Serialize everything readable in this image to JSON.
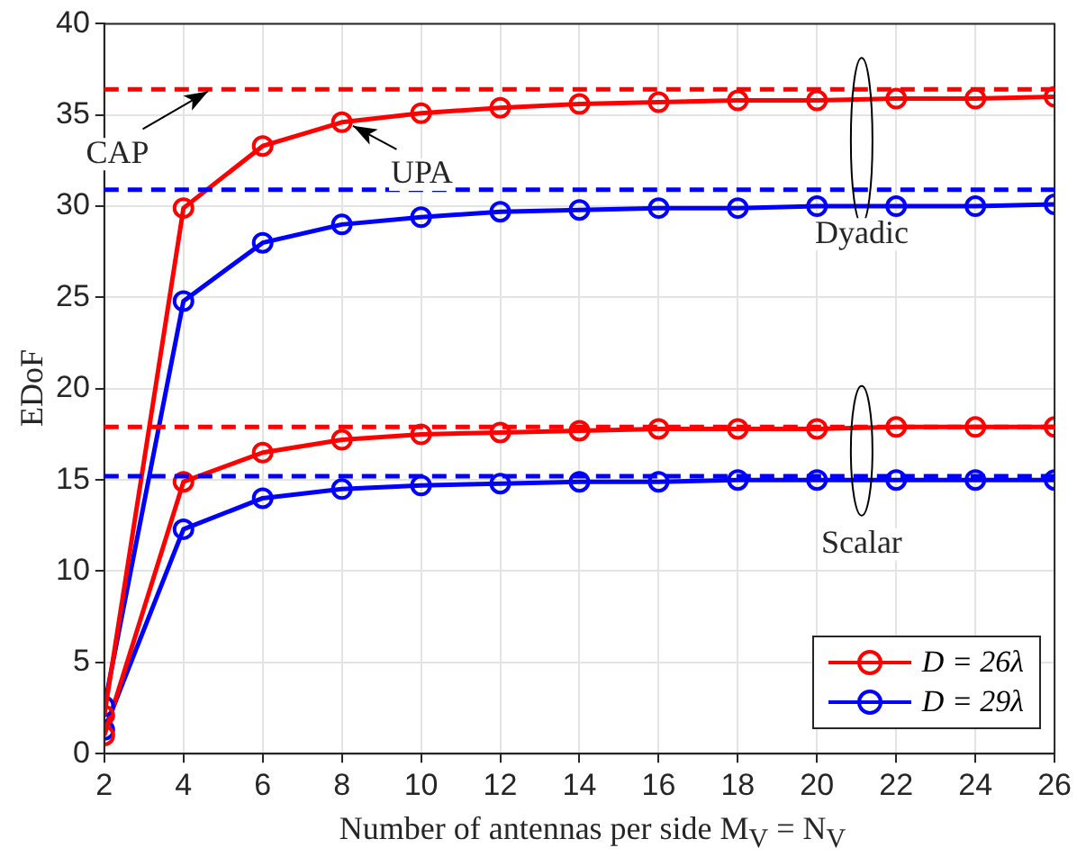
{
  "chart_data": {
    "type": "line",
    "xlabel": "Number of antennas per side M$_{V}$ = N$_{V}$",
    "ylabel": "EDoF",
    "x": [
      2,
      4,
      6,
      8,
      10,
      12,
      14,
      16,
      18,
      20,
      22,
      24,
      26
    ],
    "series": [
      {
        "name": "D = 26λ",
        "color": "#ff0000",
        "values": [
          2.1,
          29.9,
          33.3,
          34.6,
          35.1,
          35.4,
          35.6,
          35.7,
          35.8,
          35.8,
          35.9,
          35.9,
          36.0
        ]
      },
      {
        "name": "D = 29λ",
        "color": "#0000ff",
        "values": [
          2.6,
          24.8,
          28.0,
          29.0,
          29.4,
          29.7,
          29.8,
          29.9,
          29.9,
          30.0,
          30.0,
          30.0,
          30.1
        ]
      },
      {
        "color": "#ff0000",
        "values": [
          1.0,
          14.9,
          16.5,
          17.2,
          17.5,
          17.6,
          17.7,
          17.8,
          17.8,
          17.8,
          17.9,
          17.9,
          17.9
        ]
      },
      {
        "color": "#0000ff",
        "values": [
          1.3,
          12.3,
          14.0,
          14.5,
          14.7,
          14.8,
          14.9,
          14.9,
          15.0,
          15.0,
          15.0,
          15.0,
          15.0
        ]
      }
    ],
    "ref_lines": [
      {
        "axis": "y",
        "value": 36.4,
        "color": "#ff0000",
        "line_style": "dashed"
      },
      {
        "axis": "y",
        "value": 30.9,
        "color": "#0000ff",
        "line_style": "dashed"
      },
      {
        "axis": "y",
        "value": 17.9,
        "color": "#ff0000",
        "line_style": "dashed"
      },
      {
        "axis": "y",
        "value": 15.2,
        "color": "#0000ff",
        "line_style": "dashed"
      }
    ],
    "annotations": [
      {
        "text": "CAP",
        "x": 4.7,
        "y": 36.4
      },
      {
        "text": "UPA",
        "x": 8.2,
        "y": 34.5
      },
      "Dyadic",
      "Scalar"
    ],
    "xlim": [
      2,
      26
    ],
    "xticks": [
      2,
      4,
      6,
      8,
      10,
      12,
      14,
      16,
      18,
      20,
      22,
      24,
      26
    ],
    "ylim": [
      0,
      40
    ],
    "yticks": [
      0,
      5,
      10,
      15,
      20,
      25,
      30,
      35,
      40
    ],
    "grid": true,
    "legend": "bottom right",
    "marker": "circle",
    "line_style": "solid"
  }
}
